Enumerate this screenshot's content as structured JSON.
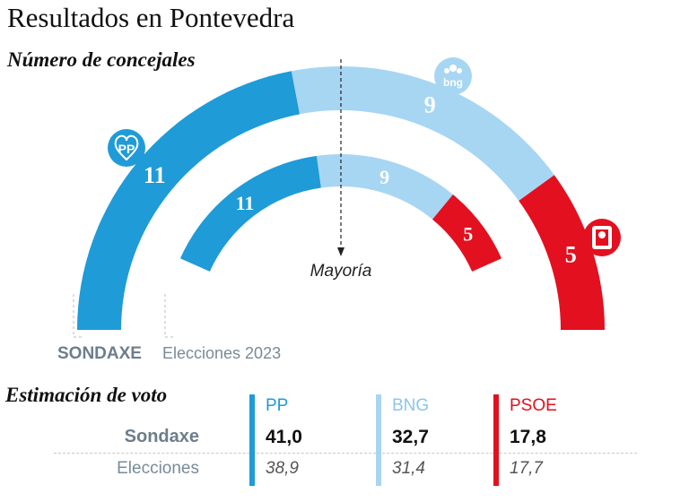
{
  "header": {
    "title": "Resultados en Pontevedra",
    "subtitle": "Número de concejales"
  },
  "colors": {
    "PP": "#1f9bd7",
    "BNG": "#a7d6f3",
    "PSOE": "#e3101f",
    "survey_label": "#6e7d8c",
    "elections_label": "#7a8a99"
  },
  "icons": {
    "PP": "pp-logo-icon",
    "BNG": "bng-logo-icon",
    "PSOE": "psoe-logo-icon"
  },
  "chart_data": [
    {
      "type": "semicircle-parliament",
      "title": "Número de concejales",
      "total_seats": 25,
      "majority_label": "Mayoría",
      "rings": [
        {
          "name": "SONDAXE",
          "series": [
            {
              "party": "PP",
              "seats": 11
            },
            {
              "party": "BNG",
              "seats": 9
            },
            {
              "party": "PSOE",
              "seats": 5
            }
          ]
        },
        {
          "name": "Elecciones 2023",
          "series": [
            {
              "party": "PP",
              "seats": 11
            },
            {
              "party": "BNG",
              "seats": 9
            },
            {
              "party": "PSOE",
              "seats": 5
            }
          ]
        }
      ]
    },
    {
      "type": "table",
      "title": "Estimación de voto",
      "columns": [
        "PP",
        "BNG",
        "PSOE"
      ],
      "rows": [
        {
          "label": "Sondaxe",
          "values": [
            "41,0",
            "32,7",
            "17,8"
          ]
        },
        {
          "label": "Elecciones",
          "values": [
            "38,9",
            "31,4",
            "17,7"
          ]
        }
      ]
    }
  ]
}
